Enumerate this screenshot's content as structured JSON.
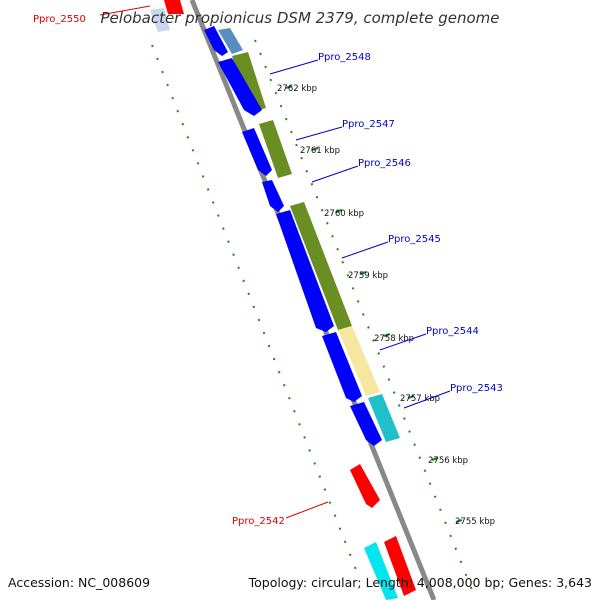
{
  "title": "Pelobacter propionicus DSM 2379, complete genome",
  "accession_text": "Accession: NC_008609",
  "summary_text": "Topology: circular; Length: 4,008,000 bp; Genes: 3,643",
  "colors": {
    "backbone": "#888888",
    "tick_green": "#1a8a1a",
    "blue_gene": "#0000ff",
    "olive_gene": "#6b8e23",
    "light_yellow_gene": "#f5e6a0",
    "cyan_gene": "#20c0c8",
    "red_gene": "#ff0000",
    "steelblue_gene": "#5b8cc0",
    "label_blue": "#0000cc",
    "label_red": "#dd0000"
  },
  "scale_labels": [
    "2762 kbp",
    "2761 kbp",
    "2760 kbp",
    "2759 kbp",
    "2758 kbp",
    "2757 kbp",
    "2756 kbp",
    "2755 kbp"
  ],
  "gene_labels": [
    {
      "text": "Ppro_2550",
      "color": "red"
    },
    {
      "text": "Ppro_2548",
      "color": "blue"
    },
    {
      "text": "Ppro_2547",
      "color": "blue"
    },
    {
      "text": "Ppro_2546",
      "color": "blue"
    },
    {
      "text": "Ppro_2545",
      "color": "blue"
    },
    {
      "text": "Ppro_2544",
      "color": "blue"
    },
    {
      "text": "Ppro_2543",
      "color": "blue"
    },
    {
      "text": "Ppro_2542",
      "color": "red"
    }
  ]
}
